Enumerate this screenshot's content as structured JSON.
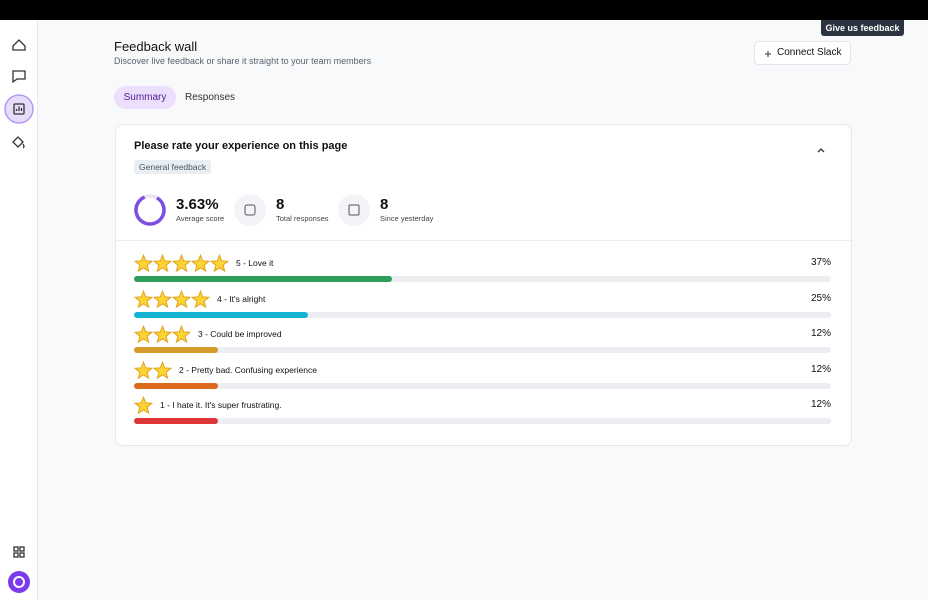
{
  "tooltip": "Give us feedback",
  "header": {
    "title": "Feedback wall",
    "subtitle": "Discover live feedback or share it straight to your team members",
    "button": "Connect Slack"
  },
  "tabs": [
    "Summary",
    "Responses"
  ],
  "card": {
    "title": "Please rate your experience on this page",
    "tag": "General feedback",
    "stats": [
      {
        "value": "3.63%",
        "label": "Average score"
      },
      {
        "value": 8,
        "label": "Total responses"
      },
      {
        "value": 8,
        "label": "Since yesterday"
      }
    ],
    "rows": [
      {
        "stars": 5,
        "label": "5 - Love it",
        "percent": 37,
        "percent_label": "37%",
        "color": "#2e9e5b"
      },
      {
        "stars": 4,
        "label": "4 - It's alright",
        "percent": 25,
        "percent_label": "25%",
        "color": "#14b3d4"
      },
      {
        "stars": 3,
        "label": "3 - Could be improved",
        "percent": 12,
        "percent_label": "12%",
        "color": "#d49a2a"
      },
      {
        "stars": 2,
        "label": "2 - Pretty bad. Confusing experience",
        "percent": 12,
        "percent_label": "12%",
        "color": "#dc6a1e"
      },
      {
        "stars": 1,
        "label": "1 - I hate it. It's super frustrating.",
        "percent": 12,
        "percent_label": "12%",
        "color": "#dd3535"
      }
    ]
  }
}
